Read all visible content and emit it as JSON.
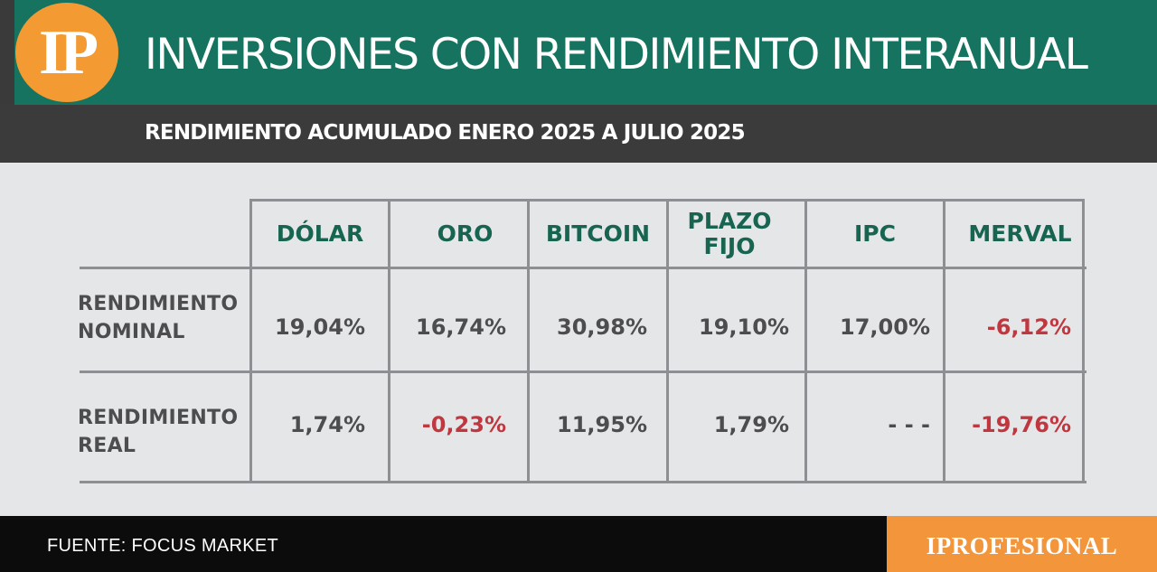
{
  "logo": {
    "text": "IP"
  },
  "header": {
    "title": "INVERSIONES CON RENDIMIENTO INTERANUAL",
    "subtitle": "RENDIMIENTO ACUMULADO ENERO 2025 A JULIO 2025"
  },
  "table": {
    "columns": [
      "DÓLAR",
      "ORO",
      "BITCOIN",
      "PLAZO FIJO",
      "IPC",
      "MERVAL"
    ],
    "rows": [
      {
        "label_line1": "RENDIMIENTO",
        "label_line2": "NOMINAL",
        "values": [
          "19,04%",
          "16,74%",
          "30,98%",
          "19,10%",
          "17,00%",
          "-6,12%"
        ]
      },
      {
        "label_line1": "RENDIMIENTO",
        "label_line2": "REAL",
        "values": [
          "1,74%",
          "-0,23%",
          "11,95%",
          "1,79%",
          "- - -",
          "-19,76%"
        ]
      }
    ]
  },
  "footer": {
    "source": "FUENTE: FOCUS MARKET",
    "brand": "IPROFESIONAL"
  },
  "colors": {
    "header_green": "#15735f",
    "logo_orange": "#f39a33",
    "column_header_text": "#176450",
    "negative_value": "#c1373f",
    "value_text": "#4d4d4f"
  }
}
